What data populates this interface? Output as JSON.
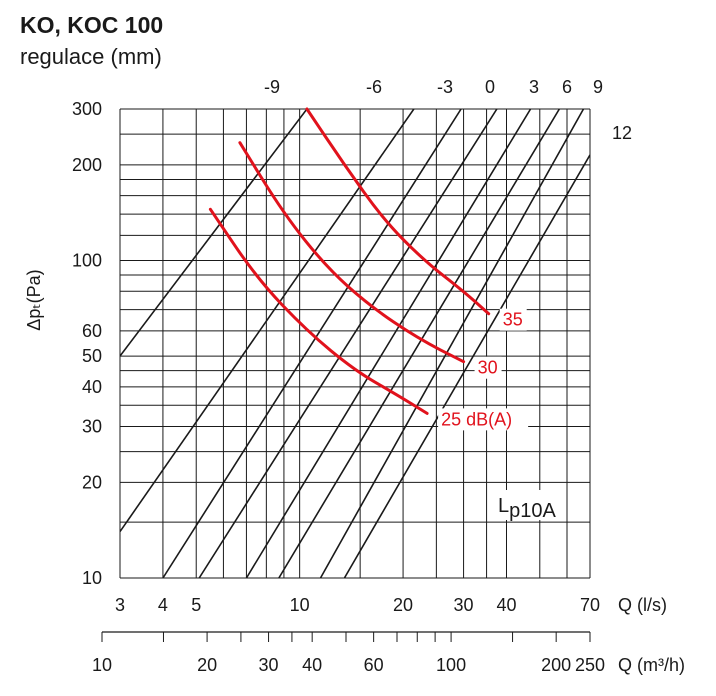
{
  "header": {
    "title": "KO, KOC 100",
    "subtitle": "regulace (mm)"
  },
  "chart_data": {
    "type": "line",
    "title": "KO, KOC 100",
    "subtitle": "regulace (mm)",
    "y_axis": {
      "label": "Δpₜ(Pa)",
      "scale": "log",
      "range": [
        10,
        300
      ],
      "tick_labels": [
        300,
        200,
        100,
        60,
        50,
        40,
        30,
        20,
        10
      ]
    },
    "x_axis": {
      "label": "Q (l/s)",
      "scale": "log",
      "range": [
        3,
        70
      ],
      "tick_labels": [
        3,
        4,
        5,
        10,
        20,
        30,
        40,
        70
      ]
    },
    "x2_axis": {
      "label": "Q (m³/h)",
      "scale": "log",
      "range": [
        10,
        250
      ],
      "tick_labels": [
        10,
        20,
        30,
        40,
        60,
        100,
        200,
        250
      ]
    },
    "regulation_axis": {
      "label": "regulace (mm)",
      "tick_labels": [
        "-9",
        "-6",
        "-3",
        "0",
        "3",
        "6",
        "9",
        "12"
      ]
    },
    "regulation_lines": [
      {
        "name": "-9",
        "points": [
          [
            3.0,
            50
          ],
          [
            10.5,
            300
          ]
        ]
      },
      {
        "name": "-6",
        "points": [
          [
            3.0,
            14
          ],
          [
            21.5,
            300
          ]
        ]
      },
      {
        "name": "-3",
        "points": [
          [
            4.0,
            10
          ],
          [
            29.5,
            300
          ]
        ]
      },
      {
        "name": "0",
        "points": [
          [
            5.1,
            10
          ],
          [
            37.5,
            300
          ]
        ]
      },
      {
        "name": "3",
        "points": [
          [
            7.0,
            10
          ],
          [
            47.0,
            300
          ]
        ]
      },
      {
        "name": "6",
        "points": [
          [
            8.7,
            10
          ],
          [
            57.0,
            300
          ]
        ]
      },
      {
        "name": "9",
        "points": [
          [
            11.5,
            10
          ],
          [
            67.0,
            300
          ]
        ]
      },
      {
        "name": "12",
        "points": [
          [
            13.5,
            10
          ],
          [
            70.0,
            215
          ]
        ]
      }
    ],
    "series": [
      {
        "name": "25 dB(A)",
        "points": [
          [
            5.5,
            145
          ],
          [
            7.5,
            88
          ],
          [
            10.5,
            60
          ],
          [
            14.5,
            45
          ],
          [
            19.0,
            38
          ],
          [
            23.5,
            33
          ]
        ]
      },
      {
        "name": "30",
        "points": [
          [
            6.7,
            235
          ],
          [
            9.0,
            140
          ],
          [
            12.0,
            95
          ],
          [
            16.0,
            72
          ],
          [
            22.0,
            57
          ],
          [
            30.0,
            48
          ]
        ]
      },
      {
        "name": "35",
        "points": [
          [
            10.5,
            300
          ],
          [
            13.5,
            200
          ],
          [
            17.5,
            135
          ],
          [
            23.0,
            100
          ],
          [
            30.0,
            80
          ],
          [
            35.5,
            68
          ]
        ]
      }
    ],
    "annotations": {
      "sound_label": "Lp10A"
    },
    "grid": true
  }
}
